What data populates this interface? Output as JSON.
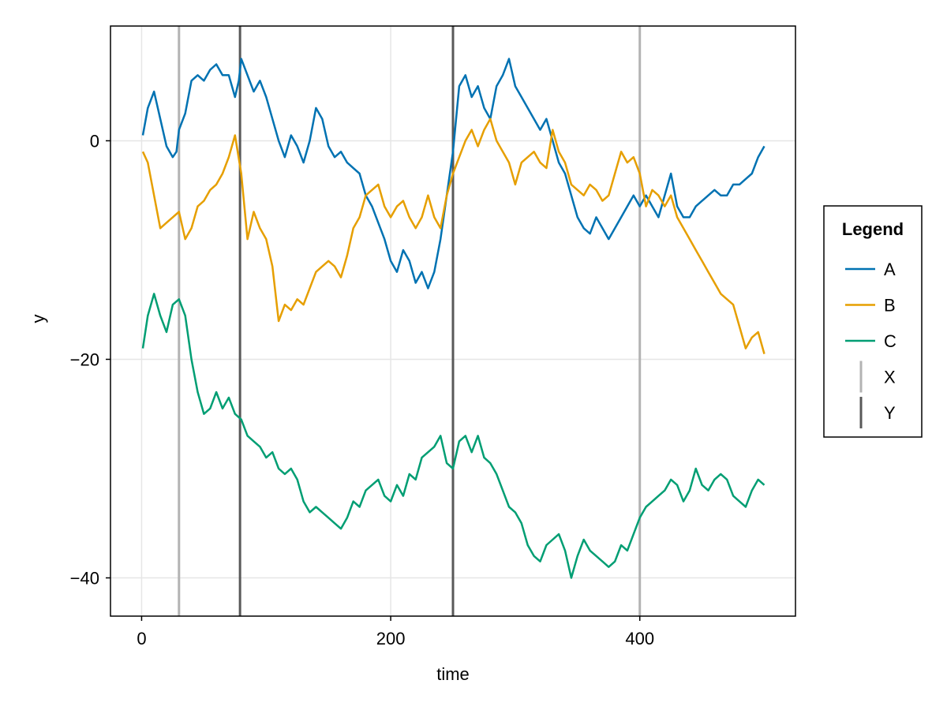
{
  "chart_data": {
    "type": "line",
    "title": "",
    "xlabel": "time",
    "ylabel": "y",
    "xlim": [
      -25,
      525
    ],
    "ylim": [
      -43.5,
      10.5
    ],
    "xticks": [
      0,
      200,
      400
    ],
    "yticks": [
      0,
      -20,
      -40
    ],
    "grid": true,
    "legend": {
      "title": "Legend",
      "placement": "right",
      "entries": [
        "A",
        "B",
        "C",
        "X",
        "Y"
      ]
    },
    "series": [
      {
        "name": "A",
        "color": "#0072B2",
        "x": [
          1,
          5,
          10,
          15,
          20,
          25,
          28,
          30,
          35,
          40,
          45,
          50,
          55,
          60,
          65,
          70,
          75,
          78,
          80,
          85,
          90,
          95,
          100,
          105,
          110,
          115,
          120,
          125,
          130,
          135,
          140,
          145,
          150,
          155,
          160,
          165,
          170,
          175,
          180,
          185,
          190,
          195,
          200,
          205,
          210,
          215,
          220,
          225,
          230,
          235,
          240,
          245,
          250,
          255,
          260,
          265,
          270,
          275,
          280,
          285,
          290,
          295,
          300,
          305,
          310,
          315,
          320,
          325,
          330,
          335,
          340,
          345,
          350,
          355,
          360,
          365,
          370,
          375,
          380,
          385,
          390,
          395,
          400,
          405,
          410,
          415,
          420,
          425,
          430,
          435,
          440,
          445,
          450,
          455,
          460,
          465,
          470,
          475,
          480,
          485,
          490,
          495,
          500
        ],
        "values": [
          0.5,
          3,
          4.5,
          2,
          -0.5,
          -1.5,
          -1,
          1,
          2.5,
          5.5,
          6,
          5.5,
          6.5,
          7,
          6,
          6,
          4,
          5.5,
          7.5,
          6,
          4.5,
          5.5,
          4,
          2,
          0,
          -1.5,
          0.5,
          -0.5,
          -2,
          0,
          3,
          2,
          -0.5,
          -1.5,
          -1,
          -2,
          -2.5,
          -3,
          -5,
          -6,
          -7.5,
          -9,
          -11,
          -12,
          -10,
          -11,
          -13,
          -12,
          -13.5,
          -12,
          -9,
          -5,
          -1,
          5,
          6,
          4,
          5,
          3,
          2,
          5,
          6,
          7.5,
          5,
          4,
          3,
          2,
          1,
          2,
          0,
          -2,
          -3,
          -5,
          -7,
          -8,
          -8.5,
          -7,
          -8,
          -9,
          -8,
          -7,
          -6,
          -5,
          -6,
          -5,
          -6,
          -7,
          -5,
          -3,
          -6,
          -7,
          -7,
          -6,
          -5.5,
          -5,
          -4.5,
          -5,
          -5,
          -4,
          -4,
          -3.5,
          -3,
          -1.5,
          -0.5
        ]
      },
      {
        "name": "B",
        "color": "#E69F00",
        "x": [
          1,
          5,
          10,
          15,
          20,
          25,
          30,
          35,
          40,
          45,
          50,
          55,
          60,
          65,
          70,
          75,
          80,
          85,
          90,
          95,
          100,
          105,
          110,
          115,
          120,
          125,
          130,
          135,
          140,
          145,
          150,
          155,
          160,
          165,
          170,
          175,
          180,
          185,
          190,
          195,
          200,
          205,
          210,
          215,
          220,
          225,
          230,
          235,
          240,
          245,
          250,
          255,
          260,
          265,
          270,
          275,
          280,
          285,
          290,
          295,
          300,
          305,
          310,
          315,
          320,
          325,
          330,
          335,
          340,
          345,
          350,
          355,
          360,
          365,
          370,
          375,
          380,
          385,
          390,
          395,
          400,
          405,
          410,
          415,
          420,
          425,
          430,
          435,
          440,
          445,
          450,
          455,
          460,
          465,
          470,
          475,
          480,
          485,
          490,
          495,
          500
        ],
        "values": [
          -1,
          -2,
          -5,
          -8,
          -7.5,
          -7,
          -6.5,
          -9,
          -8,
          -6,
          -5.5,
          -4.5,
          -4,
          -3,
          -1.5,
          0.5,
          -3,
          -9,
          -6.5,
          -8,
          -9,
          -11.5,
          -16.5,
          -15,
          -15.5,
          -14.5,
          -15,
          -13.5,
          -12,
          -11.5,
          -11,
          -11.5,
          -12.5,
          -10.5,
          -8,
          -7,
          -5,
          -4.5,
          -4,
          -6,
          -7,
          -6,
          -5.5,
          -7,
          -8,
          -7,
          -5,
          -7,
          -8,
          -5,
          -3,
          -1.5,
          0,
          1,
          -0.5,
          1,
          2,
          0,
          -1,
          -2,
          -4,
          -2,
          -1.5,
          -1,
          -2,
          -2.5,
          1,
          -1,
          -2,
          -4,
          -4.5,
          -5,
          -4,
          -4.5,
          -5.5,
          -5,
          -3,
          -1,
          -2,
          -1.5,
          -3,
          -6,
          -4.5,
          -5,
          -6,
          -5,
          -7,
          -8,
          -9,
          -10,
          -11,
          -12,
          -13,
          -14,
          -14.5,
          -15,
          -17,
          -19,
          -18,
          -17.5,
          -19.5
        ]
      },
      {
        "name": "C",
        "color": "#009E73",
        "x": [
          1,
          5,
          10,
          15,
          20,
          25,
          30,
          35,
          40,
          45,
          50,
          55,
          60,
          65,
          70,
          75,
          80,
          85,
          90,
          95,
          100,
          105,
          110,
          115,
          120,
          125,
          130,
          135,
          140,
          145,
          150,
          155,
          160,
          165,
          170,
          175,
          180,
          185,
          190,
          195,
          200,
          205,
          210,
          215,
          220,
          225,
          230,
          235,
          240,
          245,
          250,
          255,
          260,
          265,
          270,
          275,
          280,
          285,
          290,
          295,
          300,
          305,
          310,
          315,
          320,
          325,
          330,
          335,
          340,
          345,
          350,
          355,
          360,
          365,
          370,
          375,
          380,
          385,
          390,
          395,
          400,
          405,
          410,
          415,
          420,
          425,
          430,
          435,
          440,
          445,
          450,
          455,
          460,
          465,
          470,
          475,
          480,
          485,
          490,
          495,
          500
        ],
        "values": [
          -19,
          -16,
          -14,
          -16,
          -17.5,
          -15,
          -14.5,
          -16,
          -20,
          -23,
          -25,
          -24.5,
          -23,
          -24.5,
          -23.5,
          -25,
          -25.5,
          -27,
          -27.5,
          -28,
          -29,
          -28.5,
          -30,
          -30.5,
          -30,
          -31,
          -33,
          -34,
          -33.5,
          -34,
          -34.5,
          -35,
          -35.5,
          -34.5,
          -33,
          -33.5,
          -32,
          -31.5,
          -31,
          -32.5,
          -33,
          -31.5,
          -32.5,
          -30.5,
          -31,
          -29,
          -28.5,
          -28,
          -27,
          -29.5,
          -30,
          -27.5,
          -27,
          -28.5,
          -27,
          -29,
          -29.5,
          -30.5,
          -32,
          -33.5,
          -34,
          -35,
          -37,
          -38,
          -38.5,
          -37,
          -36.5,
          -36,
          -37.5,
          -40,
          -38,
          -36.5,
          -37.5,
          -38,
          -38.5,
          -39,
          -38.5,
          -37,
          -37.5,
          -36,
          -34.5,
          -33.5,
          -33,
          -32.5,
          -32,
          -31,
          -31.5,
          -33,
          -32,
          -30,
          -31.5,
          -32,
          -31,
          -30.5,
          -31,
          -32.5,
          -33,
          -33.5,
          -32,
          -31,
          -31.5
        ]
      }
    ],
    "vlines": [
      {
        "name": "X",
        "color": "#b3b3b3",
        "x": [
          30,
          400
        ]
      },
      {
        "name": "Y",
        "color": "#595959",
        "x": [
          79,
          250
        ]
      }
    ]
  }
}
